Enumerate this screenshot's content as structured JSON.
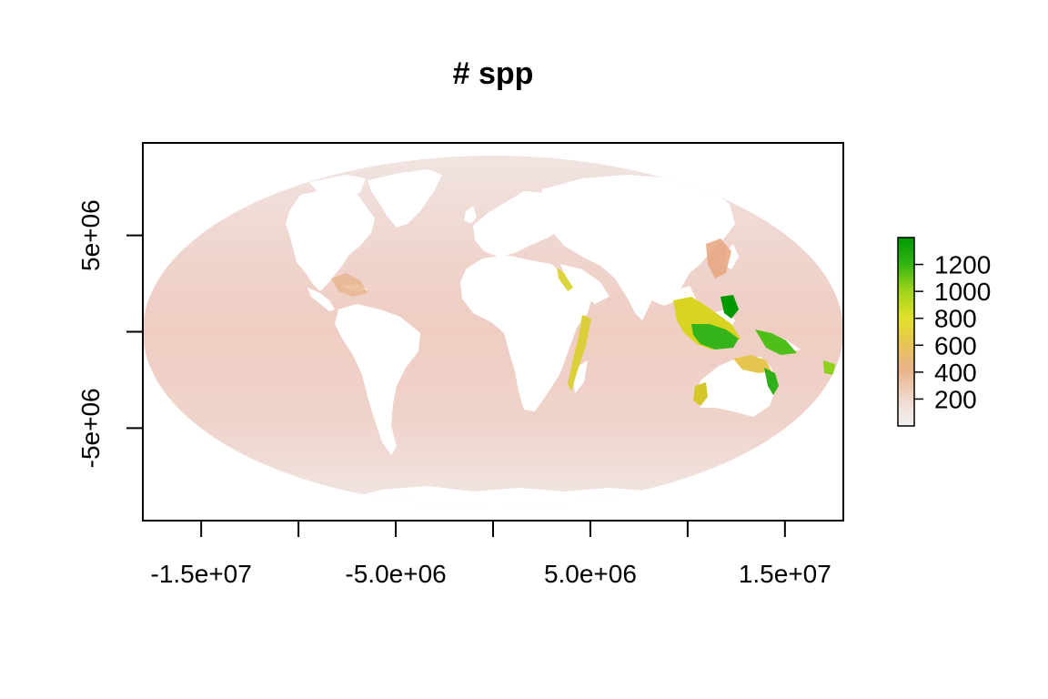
{
  "title": "# spp",
  "x_axis": {
    "ticks": [
      -15000000.0,
      -10000000.0,
      -5000000.0,
      0,
      5000000.0,
      10000000.0,
      15000000.0
    ],
    "labeled_ticks": [
      {
        "value": -15000000.0,
        "label": "-1.5e+07"
      },
      {
        "value": -5000000.0,
        "label": "-5.0e+06"
      },
      {
        "value": 5000000.0,
        "label": "5.0e+06"
      },
      {
        "value": 15000000.0,
        "label": "1.5e+07"
      }
    ],
    "range": [
      -18000000.0,
      18000000.0
    ]
  },
  "y_axis": {
    "ticks": [
      -5000000.0,
      0,
      5000000.0
    ],
    "labeled_ticks": [
      {
        "value": 5000000.0,
        "label": "5e+06"
      },
      {
        "value": -5000000.0,
        "label": "-5e+06"
      }
    ],
    "range": [
      -9800000.0,
      9800000.0
    ]
  },
  "legend": {
    "min": 0,
    "max": 1400,
    "labels": [
      {
        "value": 200,
        "label": "200"
      },
      {
        "value": 400,
        "label": "400"
      },
      {
        "value": 600,
        "label": "600"
      },
      {
        "value": 800,
        "label": "800"
      },
      {
        "value": 1000,
        "label": "1000"
      },
      {
        "value": 1200,
        "label": "1200"
      }
    ],
    "colors": [
      "#f2f2f2",
      "#eec9b6",
      "#e9a87a",
      "#e6c64a",
      "#e2e22a",
      "#8ad11a",
      "#009a00"
    ]
  },
  "colors": {
    "ocean_low": "#f1e4e2",
    "ocean_base": "#efcfc4",
    "land": "#ffffff",
    "medium": "#e8a87a",
    "high": "#d8d522",
    "very_high": "#3fb81d",
    "peak": "#009a00"
  }
}
